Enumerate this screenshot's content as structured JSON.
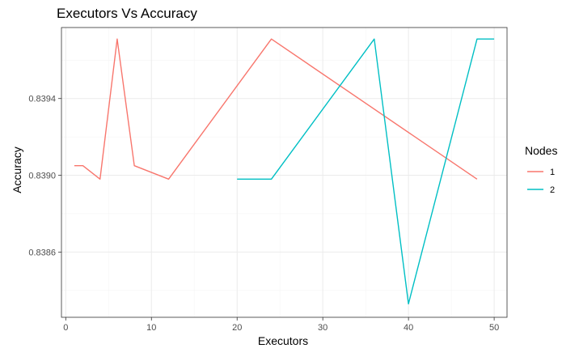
{
  "chart_data": {
    "type": "line",
    "title": "Executors Vs Accuracy",
    "xlabel": "Executors",
    "ylabel": "Accuracy",
    "xlim": [
      -0.5,
      51.5
    ],
    "ylim": [
      0.83826,
      0.83977
    ],
    "x_ticks": [
      0,
      10,
      20,
      30,
      40,
      50
    ],
    "x_tick_labels": [
      "0",
      "10",
      "20",
      "30",
      "40",
      "50"
    ],
    "y_ticks": [
      0.8386,
      0.839,
      0.8394
    ],
    "y_tick_labels": [
      "0.8386",
      "0.8390",
      "0.8394"
    ],
    "grid": true,
    "legend": {
      "title": "Nodes",
      "position": "right"
    },
    "series": [
      {
        "name": "1",
        "color": "#F8766D",
        "x": [
          1,
          2,
          4,
          6,
          8,
          12,
          24,
          48
        ],
        "y": [
          0.83905,
          0.83905,
          0.83898,
          0.83971,
          0.83905,
          0.83898,
          0.83971,
          0.83898
        ]
      },
      {
        "name": "2",
        "color": "#00BFC4",
        "x": [
          20,
          24,
          36,
          40,
          48,
          50
        ],
        "y": [
          0.83898,
          0.83898,
          0.83971,
          0.83833,
          0.83971,
          0.83971
        ]
      }
    ]
  }
}
